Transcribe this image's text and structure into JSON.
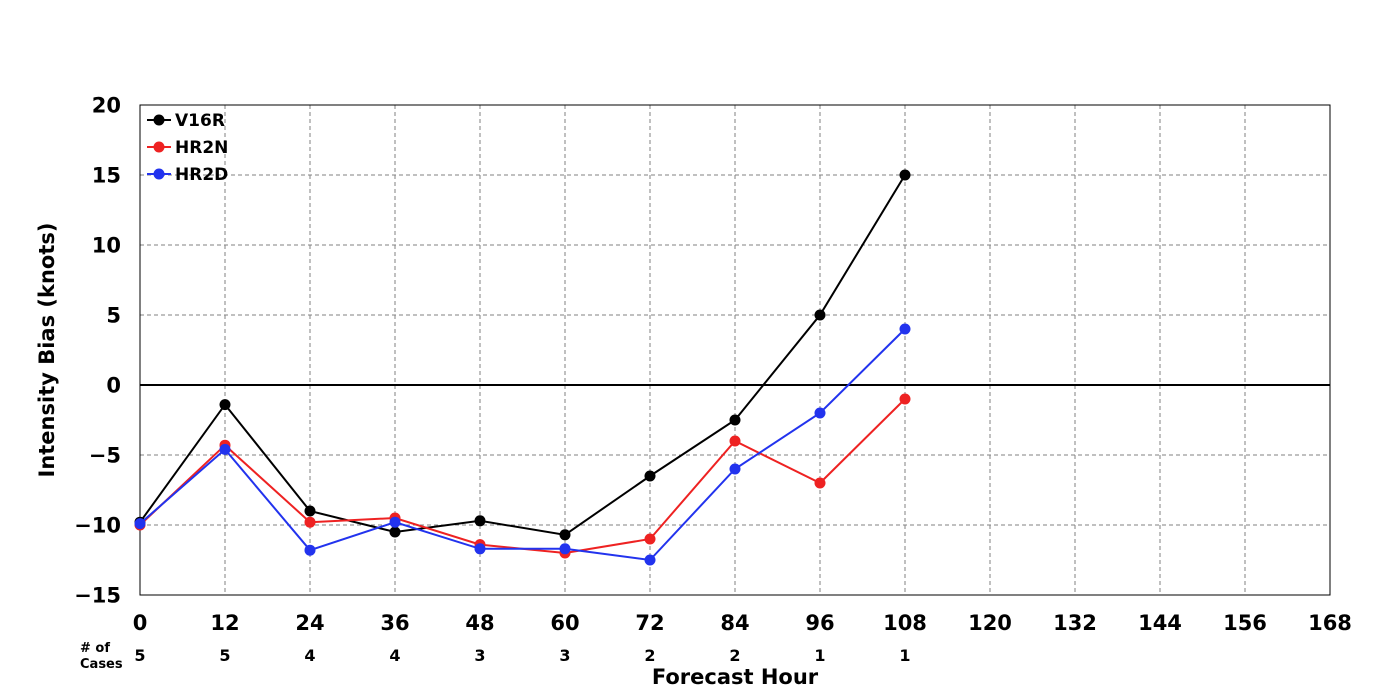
{
  "chart_data": {
    "type": "line",
    "xlabel": "Forecast Hour",
    "ylabel": "Intensity Bias (knots)",
    "xlim": [
      0,
      168
    ],
    "ylim": [
      -15,
      20
    ],
    "x_ticks": [
      0,
      12,
      24,
      36,
      48,
      60,
      72,
      84,
      96,
      108,
      120,
      132,
      144,
      156,
      168
    ],
    "y_ticks": [
      -15,
      -10,
      -5,
      0,
      5,
      10,
      15,
      20
    ],
    "y_tick_labels": [
      "−15",
      "−10",
      "−5",
      "0",
      "5",
      "10",
      "15",
      "20"
    ],
    "grid": true,
    "grid_style": "dashed",
    "zero_line": true,
    "legend_position": "top-left",
    "x": [
      0,
      12,
      24,
      36,
      48,
      60,
      72,
      84,
      96,
      108
    ],
    "series": [
      {
        "name": "V16R",
        "color": "#000000",
        "values": [
          -9.8,
          -1.4,
          -9.0,
          -10.5,
          -9.7,
          -10.7,
          -6.5,
          -2.5,
          5.0,
          15.0
        ]
      },
      {
        "name": "HR2N",
        "color": "#ee2222",
        "values": [
          -10.0,
          -4.3,
          -9.8,
          -9.5,
          -11.4,
          -12.0,
          -11.0,
          -4.0,
          -7.0,
          -1.0
        ]
      },
      {
        "name": "HR2D",
        "color": "#2233ee",
        "values": [
          -9.9,
          -4.6,
          -11.8,
          -9.8,
          -11.7,
          -11.7,
          -12.5,
          -6.0,
          -2.0,
          4.0
        ]
      }
    ],
    "cases": {
      "label_line1": "# of",
      "label_line2": "Cases",
      "x": [
        0,
        12,
        24,
        36,
        48,
        60,
        72,
        84,
        96,
        108
      ],
      "values": [
        "5",
        "5",
        "4",
        "4",
        "3",
        "3",
        "2",
        "2",
        "1",
        "1"
      ]
    }
  }
}
